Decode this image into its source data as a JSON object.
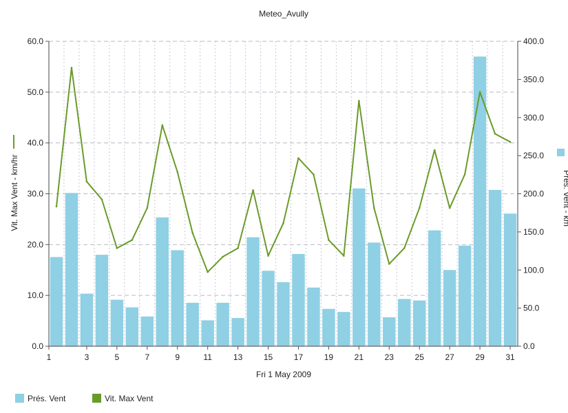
{
  "chart_data": {
    "type": "bar",
    "title": "Meteo_Avully",
    "xlabel": "Fri 1 May 2009",
    "ylabel_left": "Vit. Max Vent - km/hr",
    "ylabel_right": "Prés. Vent - km",
    "ylim_left": [
      0,
      60
    ],
    "ylim_right": [
      0,
      400
    ],
    "grid": true,
    "legend_position": "bottom-left",
    "x": [
      1,
      2,
      3,
      4,
      5,
      6,
      7,
      8,
      9,
      10,
      11,
      12,
      13,
      14,
      15,
      16,
      17,
      18,
      19,
      20,
      21,
      22,
      23,
      24,
      25,
      26,
      27,
      28,
      29,
      30,
      31
    ],
    "x_tick_labels": [
      "1",
      "3",
      "5",
      "7",
      "9",
      "11",
      "13",
      "15",
      "17",
      "19",
      "21",
      "23",
      "25",
      "27",
      "29",
      "31"
    ],
    "y_tick_labels_left": [
      "0.0",
      "10.0",
      "20.0",
      "30.0",
      "40.0",
      "50.0",
      "60.0"
    ],
    "y_tick_labels_right": [
      "0.0",
      "50.0",
      "100.0",
      "150.0",
      "200.0",
      "250.0",
      "300.0",
      "350.0",
      "400.0"
    ],
    "series": [
      {
        "name": "Prés. Vent",
        "type": "bar",
        "axis": "right",
        "color": "#8fd0e4",
        "values": [
          117,
          201,
          69,
          120,
          61,
          51,
          39,
          169,
          126,
          57,
          34,
          57,
          37,
          143,
          99,
          84,
          121,
          77,
          49,
          45,
          207,
          136,
          38,
          62,
          60,
          152,
          100,
          132,
          380,
          205,
          174
        ]
      },
      {
        "name": "Vit. Max Vent",
        "type": "line",
        "axis": "left",
        "color": "#6a9a2a",
        "values": [
          27.5,
          54.8,
          32.4,
          28.9,
          19.3,
          20.9,
          27.2,
          43.5,
          34.3,
          22.3,
          14.6,
          17.6,
          19.3,
          30.7,
          17.8,
          24.2,
          37.0,
          33.8,
          20.9,
          17.8,
          48.3,
          27.2,
          16.2,
          19.3,
          27.2,
          38.6,
          27.2,
          33.8,
          50.0,
          41.8,
          40.2
        ]
      }
    ]
  }
}
